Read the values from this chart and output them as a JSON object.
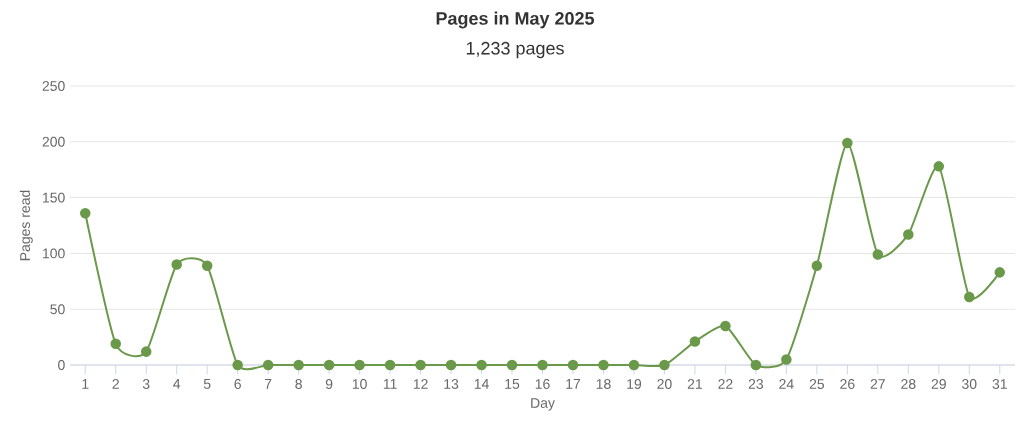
{
  "chart_data": {
    "type": "line",
    "title": "Pages in May 2025",
    "subtitle": "1,233 pages",
    "xlabel": "Day",
    "ylabel": "Pages read",
    "categories": [
      "1",
      "2",
      "3",
      "4",
      "5",
      "6",
      "7",
      "8",
      "9",
      "10",
      "11",
      "12",
      "13",
      "14",
      "15",
      "16",
      "17",
      "18",
      "19",
      "20",
      "21",
      "22",
      "23",
      "24",
      "25",
      "26",
      "27",
      "28",
      "29",
      "30",
      "31"
    ],
    "series": [
      {
        "color": "#6a994a",
        "values": [
          136,
          19,
          12,
          90,
          89,
          0,
          0,
          0,
          0,
          0,
          0,
          0,
          0,
          0,
          0,
          0,
          0,
          0,
          0,
          0,
          21,
          35,
          0,
          5,
          89,
          199,
          99,
          117,
          178,
          61,
          83
        ]
      }
    ],
    "ylim": [
      0,
      250
    ],
    "yticks": [
      0,
      50,
      100,
      150,
      200,
      250
    ],
    "grid": "y",
    "marker": "circle",
    "line_style": "solid"
  }
}
